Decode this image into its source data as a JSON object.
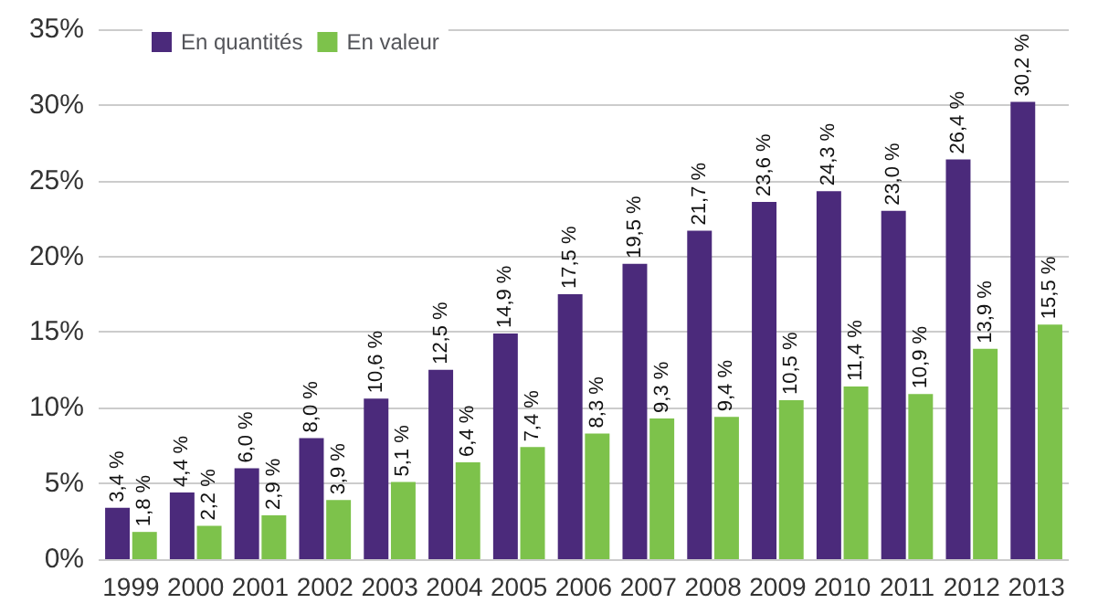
{
  "chart_data": {
    "type": "bar",
    "categories": [
      "1999",
      "2000",
      "2001",
      "2002",
      "2003",
      "2004",
      "2005",
      "2006",
      "2007",
      "2008",
      "2009",
      "2010",
      "2011",
      "2012",
      "2013"
    ],
    "series": [
      {
        "name": "En quantités",
        "color": "#4b2a7b",
        "values": [
          3.4,
          4.4,
          6.0,
          8.0,
          10.6,
          12.5,
          14.9,
          17.5,
          19.5,
          21.7,
          23.6,
          24.3,
          23.0,
          26.4,
          30.2
        ],
        "value_labels": [
          "3,4 %",
          "4,4 %",
          "6,0 %",
          "8,0 %",
          "10,6 %",
          "12,5 %",
          "14,9 %",
          "17,5 %",
          "19,5 %",
          "21,7 %",
          "23,6 %",
          "24,3 %",
          "23,0 %",
          "26,4 %",
          "30,2 %"
        ]
      },
      {
        "name": "En valeur",
        "color": "#7dc24b",
        "values": [
          1.8,
          2.2,
          2.9,
          3.9,
          5.1,
          6.4,
          7.4,
          8.3,
          9.3,
          9.4,
          10.5,
          11.4,
          10.9,
          13.9,
          15.5
        ],
        "value_labels": [
          "1,8 %",
          "2,2 %",
          "2,9 %",
          "3,9 %",
          "5,1 %",
          "6,4 %",
          "7,4 %",
          "8,3 %",
          "9,3 %",
          "9,4 %",
          "10,5 %",
          "11,4 %",
          "10,9 %",
          "13,9 %",
          "15,5 %"
        ]
      }
    ],
    "ylim": [
      0,
      35
    ],
    "yticks": [
      {
        "value": 0,
        "label": "0%"
      },
      {
        "value": 5,
        "label": "5%"
      },
      {
        "value": 10,
        "label": "10%"
      },
      {
        "value": 15,
        "label": "15%"
      },
      {
        "value": 20,
        "label": "20%"
      },
      {
        "value": 25,
        "label": "25%"
      },
      {
        "value": 30,
        "label": "30%"
      },
      {
        "value": 35,
        "label": "35%"
      }
    ],
    "grid": "y",
    "legend": "top left"
  }
}
